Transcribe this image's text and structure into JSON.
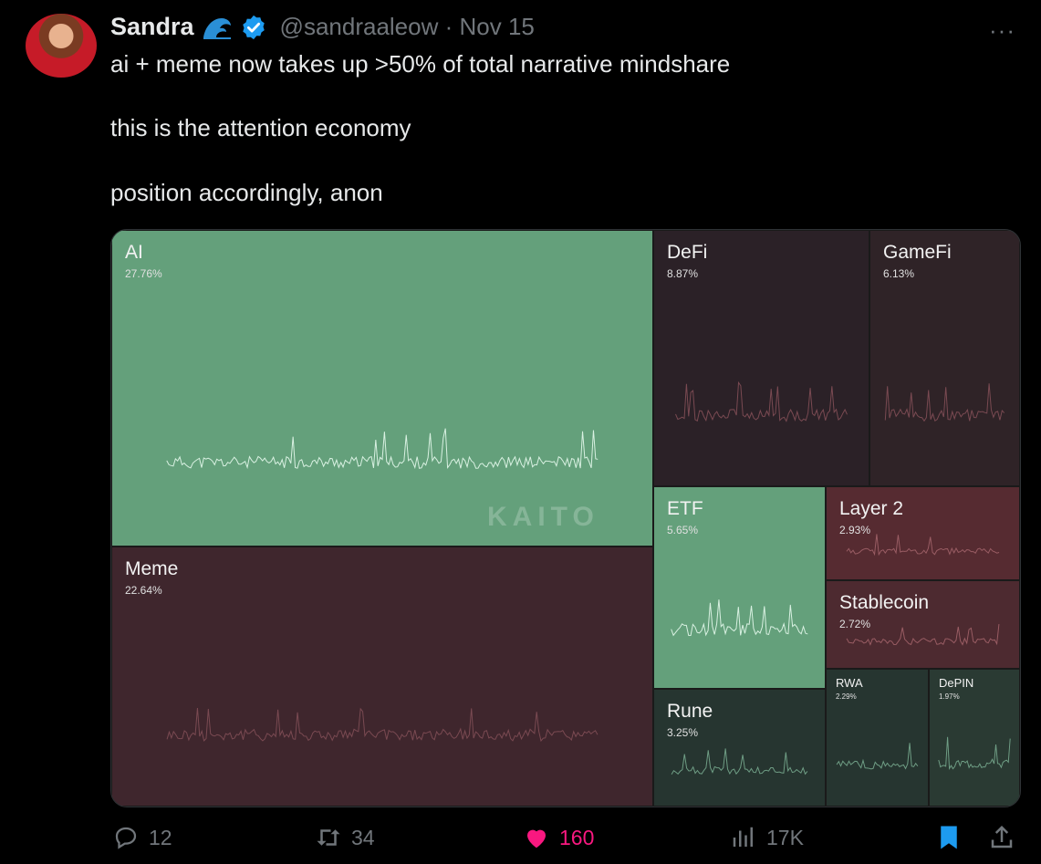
{
  "tweet": {
    "author_name": "Sandra",
    "handle": "@sandraaleow",
    "separator": "·",
    "date": "Nov 15",
    "more": "···",
    "lines": [
      "ai + meme now takes up >50% of total narrative mindshare",
      "this is the attention economy",
      "position accordingly, anon"
    ]
  },
  "chart_data": {
    "type": "treemap",
    "watermark": "KAITO",
    "items": [
      {
        "label": "AI",
        "value": 27.76,
        "value_label": "27.76%",
        "color": "#64a07b"
      },
      {
        "label": "Meme",
        "value": 22.64,
        "value_label": "22.64%",
        "color": "#3f262d"
      },
      {
        "label": "DeFi",
        "value": 8.87,
        "value_label": "8.87%",
        "color": "#2b2127"
      },
      {
        "label": "GameFi",
        "value": 6.13,
        "value_label": "6.13%",
        "color": "#2f2327"
      },
      {
        "label": "ETF",
        "value": 5.65,
        "value_label": "5.65%",
        "color": "#64a07b"
      },
      {
        "label": "Rune",
        "value": 3.25,
        "value_label": "3.25%",
        "color": "#263530"
      },
      {
        "label": "Layer 2",
        "value": 2.93,
        "value_label": "2.93%",
        "color": "#562b31"
      },
      {
        "label": "Stablecoin",
        "value": 2.72,
        "value_label": "2.72%",
        "color": "#4d2a30"
      },
      {
        "label": "RWA",
        "value": 2.29,
        "value_label": "2.29%",
        "color": "#263530"
      },
      {
        "label": "DePIN",
        "value": 1.97,
        "value_label": "1.97%",
        "color": "#2a3a33"
      }
    ]
  },
  "actions": {
    "replies": "12",
    "retweets": "34",
    "likes": "160",
    "views": "17K"
  },
  "colors": {
    "like": "#f91880",
    "bookmark": "#1d9bf0",
    "muted": "#71767b"
  }
}
